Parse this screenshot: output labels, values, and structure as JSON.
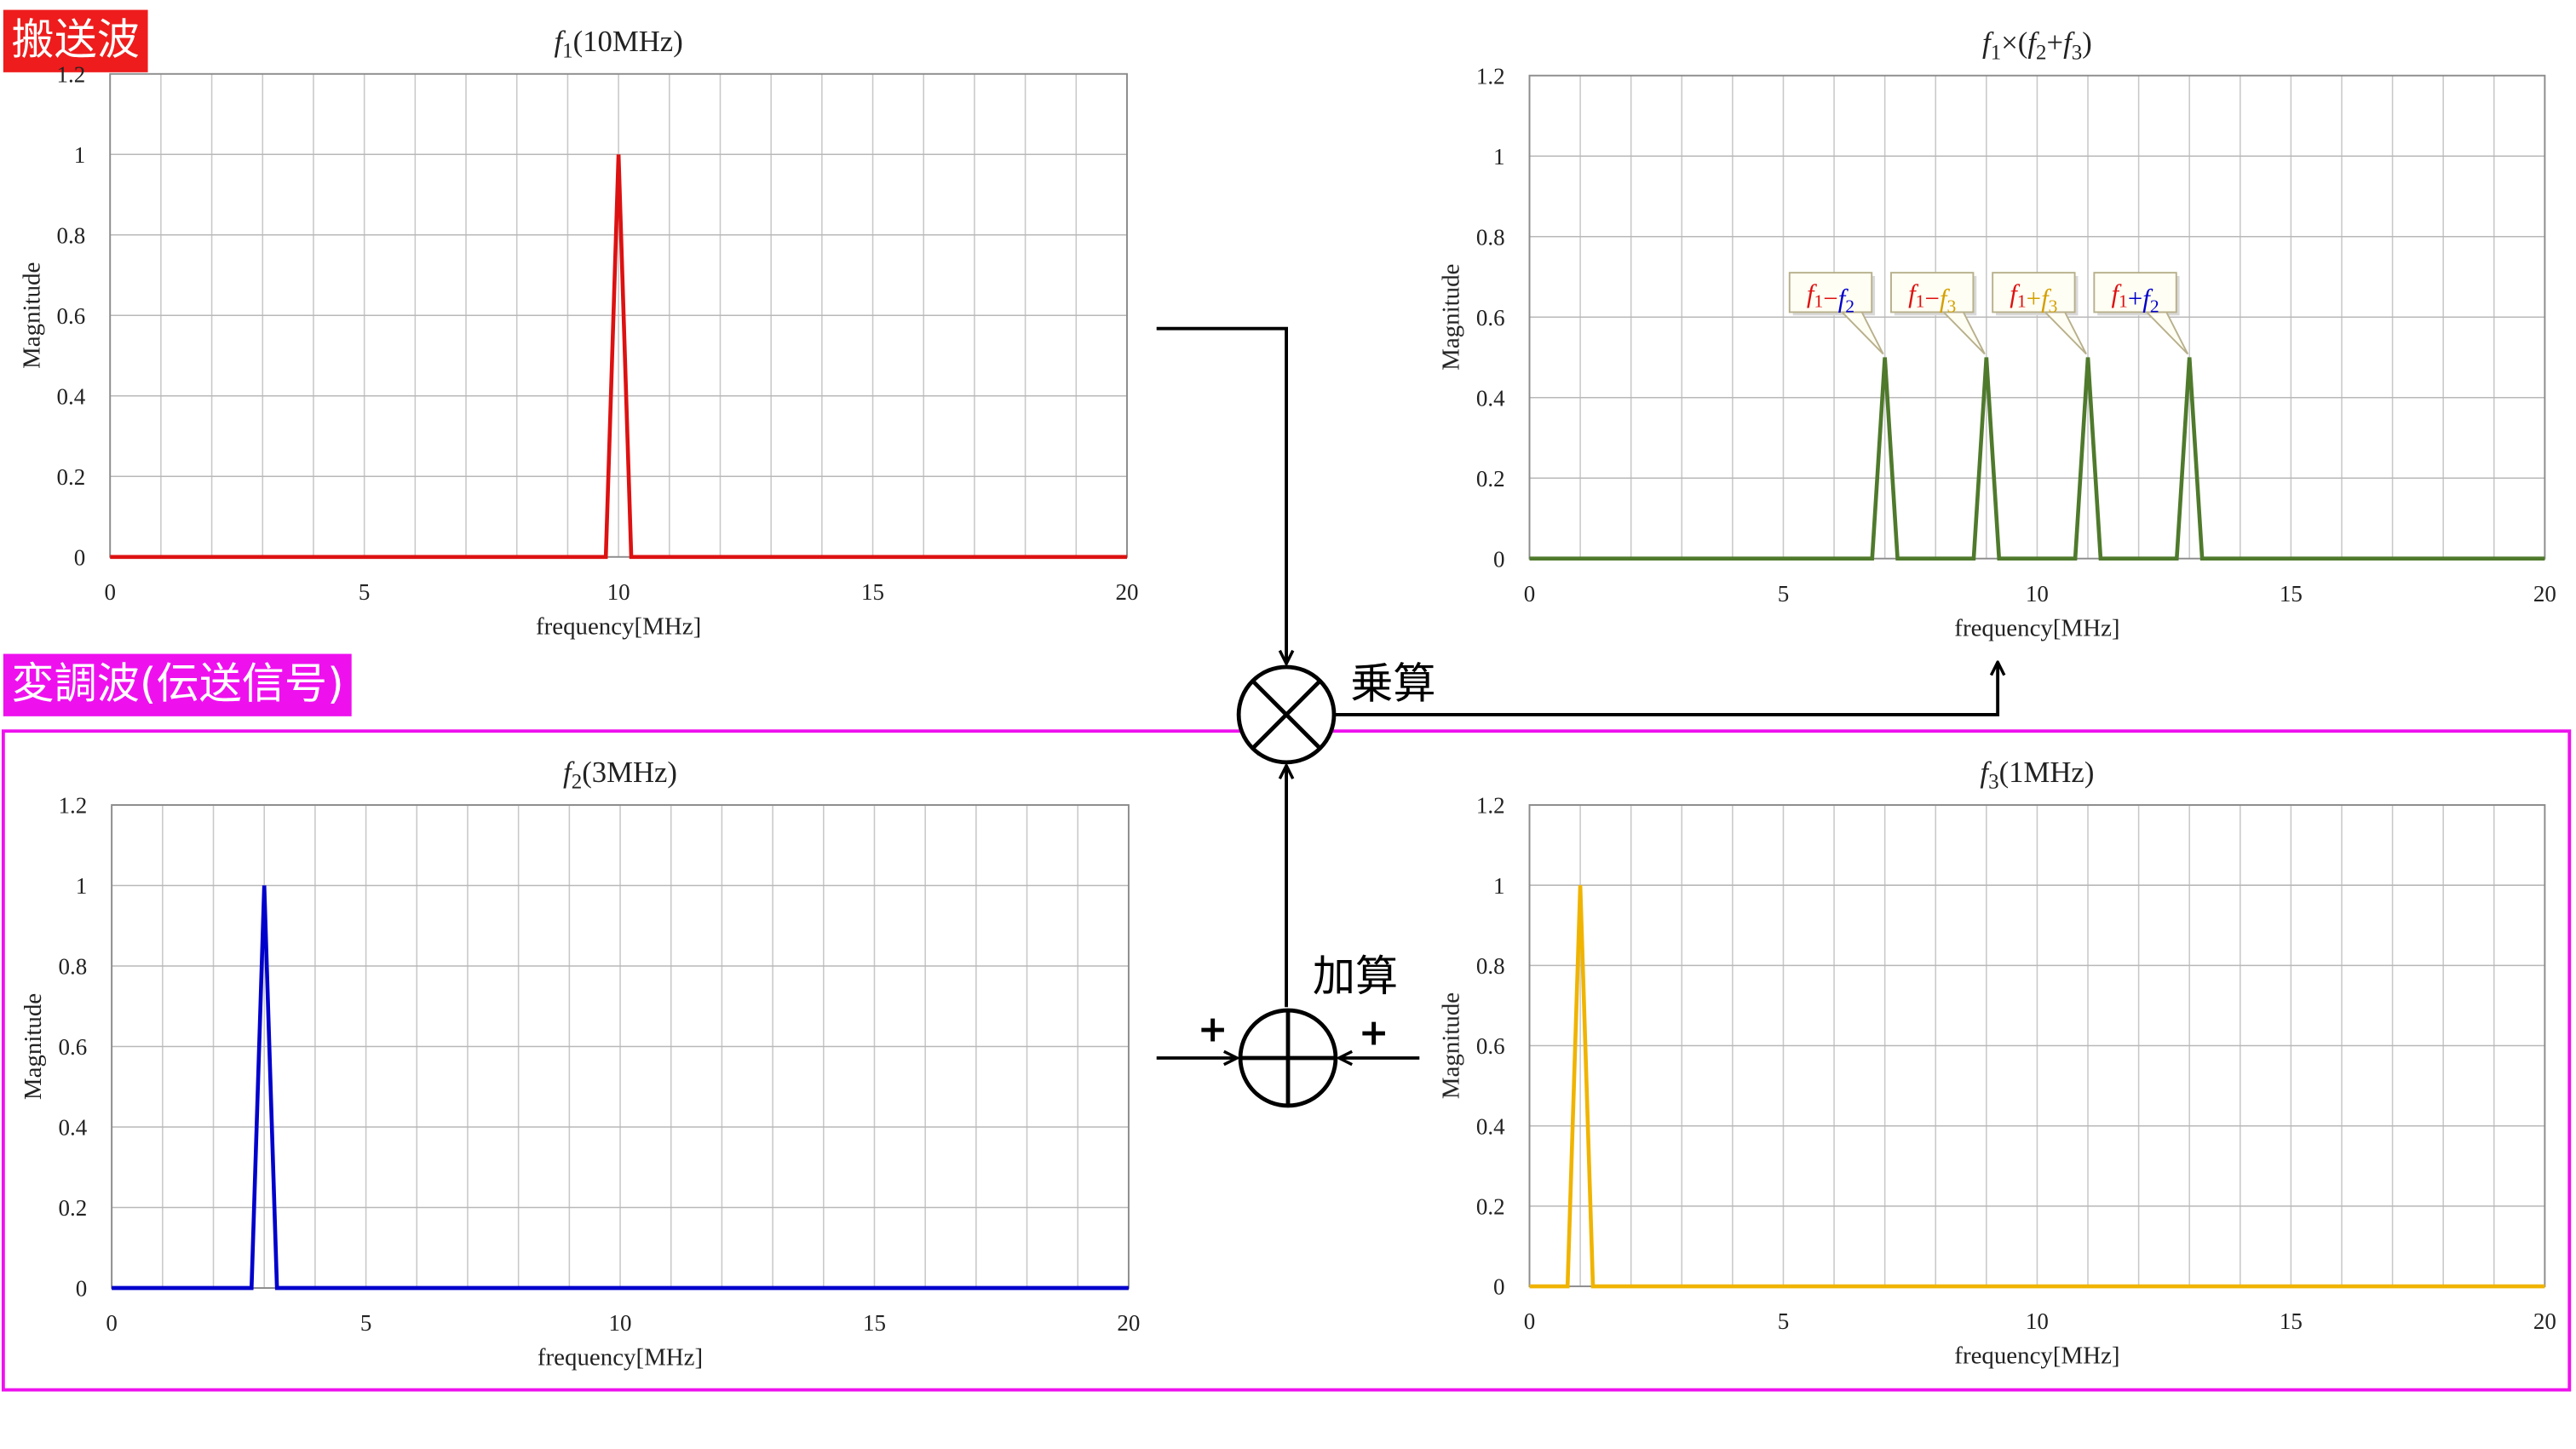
{
  "banners": {
    "carrier": "搬送波",
    "modulating": "変調波(伝送信号)"
  },
  "operators": {
    "multiply_label": "乗算",
    "add_label": "加算",
    "plus_left": "+",
    "plus_right": "+"
  },
  "colors": {
    "carrier_red": "#dd1111",
    "signal_blue": "#0000cc",
    "signal_yellow": "#f0b400",
    "product_green": "#4f7a2c",
    "banner_red": "#ee1c1c",
    "banner_magenta": "#ee11ee"
  },
  "chart_data": [
    {
      "id": "carrier",
      "type": "line",
      "title": "f1(10MHz)",
      "xlabel": "frequency[MHz]",
      "ylabel": "Magnitude",
      "xlim": [
        0,
        20
      ],
      "ylim": [
        0,
        1.2
      ],
      "xticks": [
        0,
        5,
        10,
        15,
        20
      ],
      "yticks": [
        0,
        0.2,
        0.4,
        0.6,
        0.8,
        1,
        1.2
      ],
      "grid": true,
      "color": "#dd1111",
      "series": [
        {
          "x": [
            0,
            9.75,
            10,
            10.25,
            20
          ],
          "y": [
            0,
            0,
            1,
            0,
            0
          ]
        }
      ]
    },
    {
      "id": "product",
      "type": "line",
      "title": "f1×(f2+f3)",
      "xlabel": "frequency[MHz]",
      "ylabel": "Magnitude",
      "xlim": [
        0,
        20
      ],
      "ylim": [
        0,
        1.2
      ],
      "xticks": [
        0,
        5,
        10,
        15,
        20
      ],
      "yticks": [
        0,
        0.2,
        0.4,
        0.6,
        0.8,
        1,
        1.2
      ],
      "grid": true,
      "color": "#4f7a2c",
      "series": [
        {
          "x": [
            0,
            6.75,
            7,
            7.25,
            8.75,
            9,
            9.25,
            10.75,
            11,
            11.25,
            12.75,
            13,
            13.25,
            20
          ],
          "y": [
            0,
            0,
            0.5,
            0,
            0,
            0.5,
            0,
            0,
            0.5,
            0,
            0,
            0.5,
            0,
            0
          ]
        }
      ],
      "annotations": [
        {
          "x": 7,
          "y": 0.5,
          "parts": [
            [
              "f1",
              "#dd1111"
            ],
            [
              "−",
              "#dd1111"
            ],
            [
              "f2",
              "#0000cc"
            ]
          ]
        },
        {
          "x": 9,
          "y": 0.5,
          "parts": [
            [
              "f1",
              "#dd1111"
            ],
            [
              "−",
              "#dd1111"
            ],
            [
              "f3",
              "#d4a000"
            ]
          ]
        },
        {
          "x": 11,
          "y": 0.5,
          "parts": [
            [
              "f1",
              "#dd1111"
            ],
            [
              "+",
              "#d4a000"
            ],
            [
              "f3",
              "#d4a000"
            ]
          ]
        },
        {
          "x": 13,
          "y": 0.5,
          "parts": [
            [
              "f1",
              "#dd1111"
            ],
            [
              "+",
              "#0000cc"
            ],
            [
              "f2",
              "#0000cc"
            ]
          ]
        }
      ]
    },
    {
      "id": "signal2",
      "type": "line",
      "title": "f2(3MHz)",
      "xlabel": "frequency[MHz]",
      "ylabel": "Magnitude",
      "xlim": [
        0,
        20
      ],
      "ylim": [
        0,
        1.2
      ],
      "xticks": [
        0,
        5,
        10,
        15,
        20
      ],
      "yticks": [
        0,
        0.2,
        0.4,
        0.6,
        0.8,
        1,
        1.2
      ],
      "grid": true,
      "color": "#0000cc",
      "series": [
        {
          "x": [
            0,
            2.75,
            3,
            3.25,
            20
          ],
          "y": [
            0,
            0,
            1,
            0,
            0
          ]
        }
      ]
    },
    {
      "id": "signal3",
      "type": "line",
      "title": "f3(1MHz)",
      "xlabel": "frequency[MHz]",
      "ylabel": "Magnitude",
      "xlim": [
        0,
        20
      ],
      "ylim": [
        0,
        1.2
      ],
      "xticks": [
        0,
        5,
        10,
        15,
        20
      ],
      "yticks": [
        0,
        0.2,
        0.4,
        0.6,
        0.8,
        1,
        1.2
      ],
      "grid": true,
      "color": "#f0b400",
      "series": [
        {
          "x": [
            0,
            0.75,
            1,
            1.25,
            20
          ],
          "y": [
            0,
            0,
            1,
            0,
            0
          ]
        }
      ]
    }
  ]
}
